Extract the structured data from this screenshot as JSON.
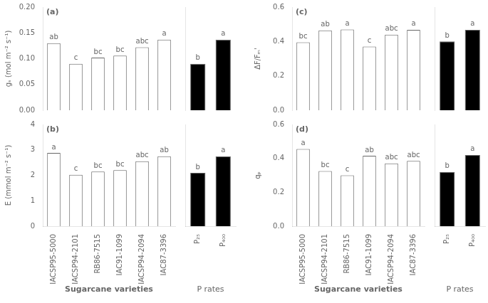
{
  "chart_data": [
    {
      "type": "bar",
      "title": "(a)",
      "ylabel": "gₛ (mol m⁻² s⁻¹)",
      "categories": [
        "IACSP95-5000",
        "IACSP94-2101",
        "RB86-7515",
        "IAC91-1099",
        "IACSP94-2094",
        "IAC87-3396"
      ],
      "values": [
        0.13,
        0.09,
        0.102,
        0.106,
        0.122,
        0.137
      ],
      "annotations": [
        "ab",
        "c",
        "bc",
        "bc",
        "abc",
        "a"
      ],
      "color": "#ffffff",
      "ylim": [
        0.0,
        0.2
      ],
      "yticks": [
        {
          "value": 0.0,
          "label": "0.00"
        },
        {
          "value": 0.05,
          "label": "0.05"
        },
        {
          "value": 0.1,
          "label": "0.10"
        },
        {
          "value": 0.15,
          "label": "0.15"
        },
        {
          "value": 0.2,
          "label": "0.20"
        }
      ],
      "grid": false,
      "tick_labels": "y"
    },
    {
      "type": "bar",
      "categories": [
        "P₂₅",
        "P₄₀₀"
      ],
      "values": [
        0.09,
        0.137
      ],
      "annotations": [
        "b",
        "a"
      ],
      "color": "#000000",
      "ylim": [
        0.0,
        0.2
      ],
      "grid": false,
      "tick_labels": false
    },
    {
      "type": "bar",
      "title": "(b)",
      "ylabel": "E (mmol m⁻² s⁻¹)",
      "xlabel": "Sugarcane varieties",
      "categories": [
        "IACSP95-5000",
        "IACSP94-2101",
        "RB86-7515",
        "IAC91-1099",
        "IACSP94-2094",
        "IAC87-3396"
      ],
      "values": [
        2.88,
        2.02,
        2.15,
        2.2,
        2.55,
        2.75
      ],
      "annotations": [
        "a",
        "c",
        "bc",
        "bc",
        "abc",
        "ab"
      ],
      "color": "#ffffff",
      "ylim": [
        0,
        4
      ],
      "yticks": [
        0,
        1,
        2,
        3,
        4
      ],
      "grid": false
    },
    {
      "type": "bar",
      "xlabel": "P rates",
      "categories": [
        "P₂₅",
        "P₄₀₀"
      ],
      "values": [
        2.1,
        2.75
      ],
      "annotations": [
        "b",
        "a"
      ],
      "color": "#000000",
      "ylim": [
        0,
        4
      ],
      "grid": false,
      "tick_labels": "x"
    },
    {
      "type": "bar",
      "title": "(c)",
      "ylabel": "ΔF/Fₘ'",
      "categories": [
        "IACSP95-5000",
        "IACSP94-2101",
        "RB86-7515",
        "IAC91-1099",
        "IACSP94-2094",
        "IAC87-3396"
      ],
      "values": [
        0.395,
        0.465,
        0.47,
        0.37,
        0.44,
        0.468
      ],
      "annotations": [
        "bc",
        "ab",
        "a",
        "c",
        "abc",
        "a"
      ],
      "color": "#ffffff",
      "ylim": [
        0.0,
        0.6
      ],
      "yticks": [
        {
          "value": 0.0,
          "label": "0.0"
        },
        {
          "value": 0.2,
          "label": "0.2"
        },
        {
          "value": 0.4,
          "label": "0.4"
        },
        {
          "value": 0.6,
          "label": "0.6"
        }
      ],
      "grid": false,
      "tick_labels": "y"
    },
    {
      "type": "bar",
      "categories": [
        "P₂₅",
        "P₄₀₀"
      ],
      "values": [
        0.4,
        0.468
      ],
      "annotations": [
        "b",
        "a"
      ],
      "color": "#000000",
      "ylim": [
        0.0,
        0.6
      ],
      "grid": false,
      "tick_labels": false
    },
    {
      "type": "bar",
      "title": "(d)",
      "ylabel": "qₚ",
      "xlabel": "Sugarcane varieties",
      "categories": [
        "IACSP95-5000",
        "IACSP94-2101",
        "RB86-7515",
        "IAC91-1099",
        "IACSP94-2094",
        "IAC87-3396"
      ],
      "values": [
        0.455,
        0.325,
        0.3,
        0.415,
        0.37,
        0.385
      ],
      "annotations": [
        "a",
        "bc",
        "c",
        "ab",
        "abc",
        "abc"
      ],
      "color": "#ffffff",
      "ylim": [
        0.0,
        0.6
      ],
      "yticks": [
        {
          "value": 0.0,
          "label": "0.0"
        },
        {
          "value": 0.2,
          "label": "0.2"
        },
        {
          "value": 0.4,
          "label": "0.4"
        },
        {
          "value": 0.6,
          "label": "0.6"
        }
      ],
      "grid": false
    },
    {
      "type": "bar",
      "xlabel": "P rates",
      "categories": [
        "P₂₅",
        "P₄₀₀"
      ],
      "values": [
        0.32,
        0.42
      ],
      "annotations": [
        "b",
        "a"
      ],
      "color": "#000000",
      "ylim": [
        0.0,
        0.6
      ],
      "grid": false,
      "tick_labels": "x"
    }
  ]
}
